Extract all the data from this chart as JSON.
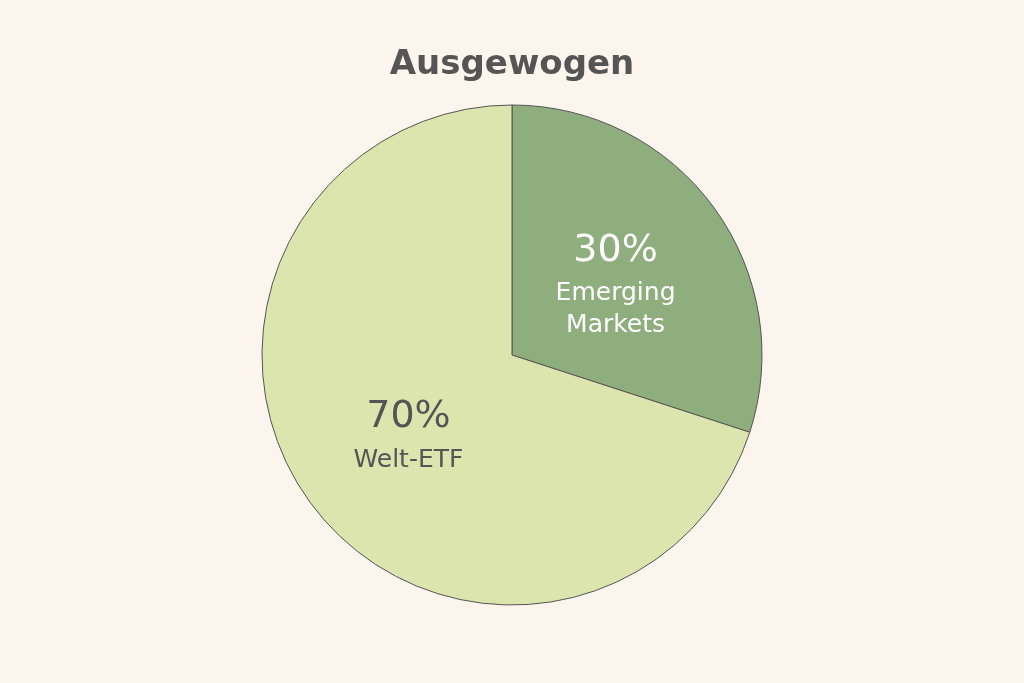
{
  "chart_data": {
    "type": "pie",
    "title": "Ausgewogen",
    "categories": [
      "Emerging Markets",
      "Welt-ETF"
    ],
    "values": [
      30,
      70
    ],
    "colors": [
      "#8fae7e",
      "#dde5ae"
    ],
    "value_labels": [
      "30%",
      "70%"
    ]
  }
}
